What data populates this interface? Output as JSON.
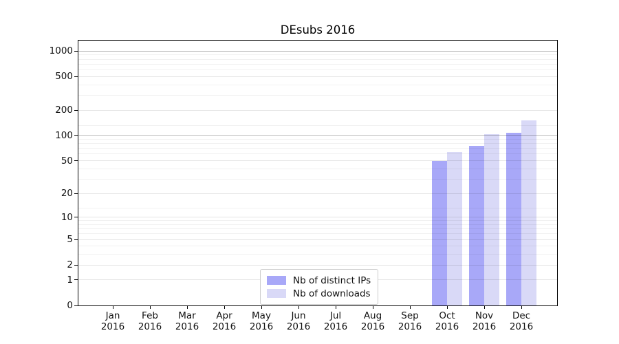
{
  "chart_data": {
    "type": "bar",
    "title": "DEsubs 2016",
    "categories": [
      "Jan 2016",
      "Feb 2016",
      "Mar 2016",
      "Apr 2016",
      "May 2016",
      "Jun 2016",
      "Jul 2016",
      "Aug 2016",
      "Sep 2016",
      "Oct 2016",
      "Nov 2016",
      "Dec 2016"
    ],
    "series": [
      {
        "name": "Nb of distinct IPs",
        "color": "#a8a8f8",
        "values": [
          0,
          0,
          0,
          0,
          0,
          0,
          0,
          0,
          0,
          50,
          75,
          108
        ]
      },
      {
        "name": "Nb of downloads",
        "color": "#d9d9f7",
        "values": [
          0,
          0,
          0,
          0,
          0,
          0,
          0,
          0,
          0,
          64,
          103,
          151
        ]
      }
    ],
    "yscale": "log1p",
    "y_ticks": [
      0,
      1,
      2,
      5,
      10,
      20,
      50,
      100,
      200,
      500,
      1000
    ],
    "minor_gridlines": [
      3,
      4,
      6,
      7,
      8,
      9,
      13,
      30,
      40,
      60,
      70,
      80,
      90,
      130,
      300,
      400,
      600,
      700,
      800,
      900
    ],
    "emphasized_gridlines": [
      100,
      1000
    ],
    "ylim": [
      0,
      1330
    ],
    "xlabel": "",
    "ylabel": "",
    "grid": true,
    "legend_position": "lower center"
  }
}
